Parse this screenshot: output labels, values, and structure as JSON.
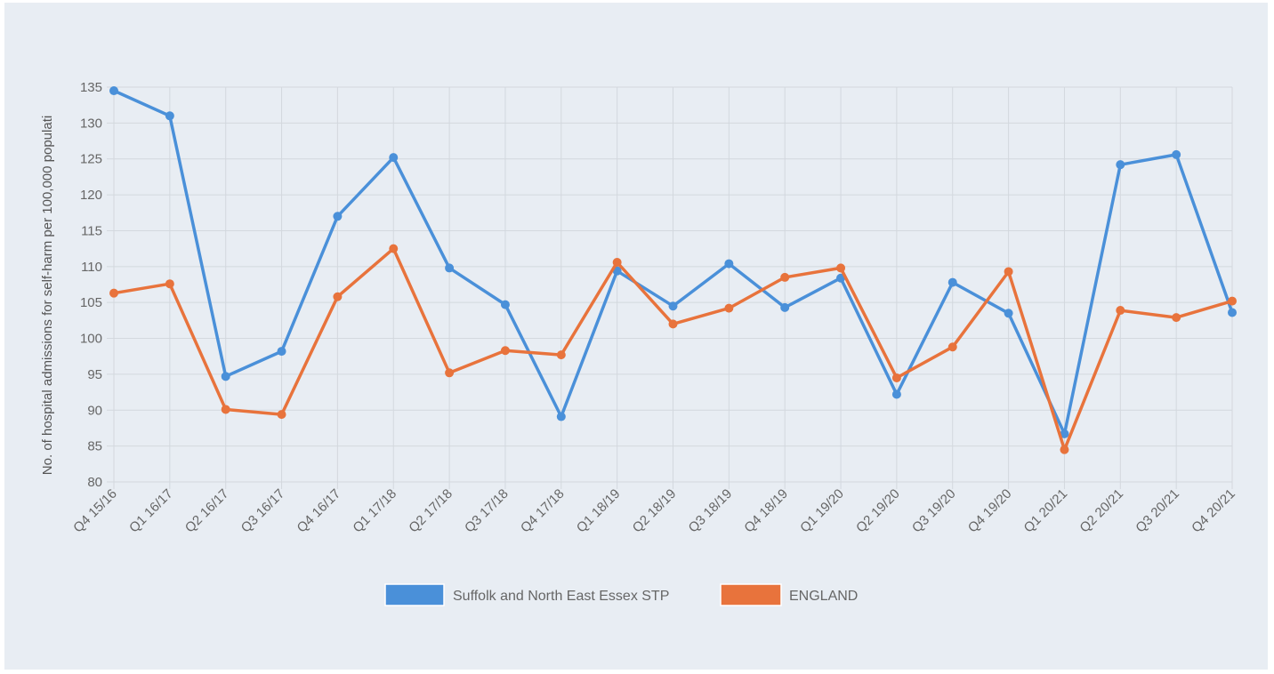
{
  "chart_data": {
    "type": "line",
    "ylabel": "No. of hospital admissions for self-harm per 100,000 populati",
    "xlabel": "",
    "ylim": [
      80,
      135
    ],
    "yticks": [
      80,
      85,
      90,
      95,
      100,
      105,
      110,
      115,
      120,
      125,
      130,
      135
    ],
    "grid": true,
    "legend_position": "bottom",
    "categories": [
      "Q4 15/16",
      "Q1 16/17",
      "Q2 16/17",
      "Q3 16/17",
      "Q4 16/17",
      "Q1 17/18",
      "Q2 17/18",
      "Q3 17/18",
      "Q4 17/18",
      "Q1 18/19",
      "Q2 18/19",
      "Q3 18/19",
      "Q4 18/19",
      "Q1 19/20",
      "Q2 19/20",
      "Q3 19/20",
      "Q4 19/20",
      "Q1 20/21",
      "Q2 20/21",
      "Q3 20/21",
      "Q4 20/21"
    ],
    "series": [
      {
        "name": "Suffolk and North East Essex STP",
        "color": "#4a90d9",
        "values": [
          134.5,
          131.0,
          94.7,
          98.2,
          117.0,
          125.2,
          109.8,
          104.7,
          89.1,
          109.4,
          104.5,
          110.4,
          104.3,
          108.4,
          92.2,
          107.8,
          103.5,
          86.7,
          124.2,
          125.6,
          103.6
        ]
      },
      {
        "name": "ENGLAND",
        "color": "#e8733c",
        "values": [
          106.3,
          107.6,
          90.1,
          89.4,
          105.8,
          112.5,
          95.2,
          98.3,
          97.7,
          110.6,
          102.0,
          104.2,
          108.5,
          109.8,
          94.5,
          98.8,
          109.3,
          84.5,
          103.9,
          102.9,
          105.2
        ]
      }
    ]
  }
}
